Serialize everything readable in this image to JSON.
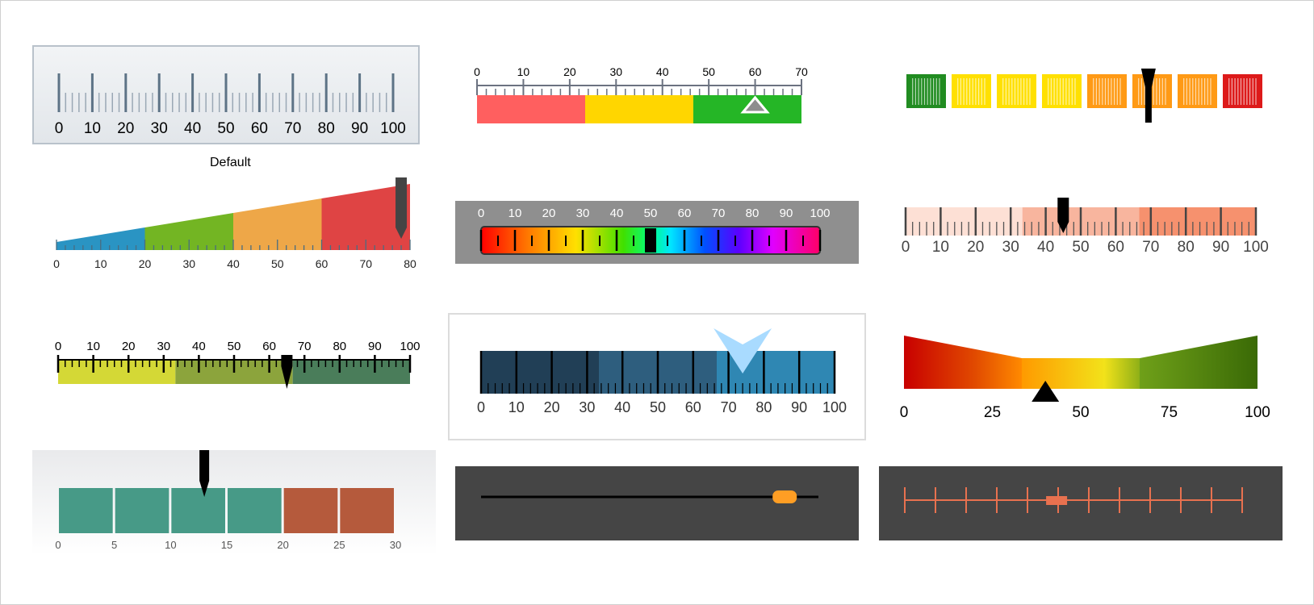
{
  "gauges": {
    "g1": {
      "caption": "Default",
      "labels": [
        "0",
        "10",
        "20",
        "30",
        "40",
        "50",
        "60",
        "70",
        "80",
        "90",
        "100"
      ]
    },
    "g2": {
      "labels": [
        "0",
        "10",
        "20",
        "30",
        "40",
        "50",
        "60",
        "70"
      ],
      "value": 60,
      "colors": [
        "#ff5f5f",
        "#ffd600",
        "#25b626"
      ]
    },
    "g3": {
      "value": 68,
      "colors": [
        "#218c21",
        "#ffe001",
        "#ffe001",
        "#ffe001",
        "#ff9a15",
        "#ff9a15",
        "#ff9a15",
        "#dd1a1a"
      ]
    },
    "g4": {
      "labels": [
        "0",
        "10",
        "20",
        "30",
        "40",
        "50",
        "60",
        "70",
        "80"
      ],
      "value": 78,
      "colors": [
        "#2a94c3",
        "#73b523",
        "#eea748",
        "#df4444"
      ]
    },
    "g5": {
      "labels": [
        "0",
        "10",
        "20",
        "30",
        "40",
        "50",
        "60",
        "70",
        "80",
        "90",
        "100"
      ]
    },
    "g6": {
      "labels": [
        "0",
        "10",
        "20",
        "30",
        "40",
        "50",
        "60",
        "70",
        "80",
        "90",
        "100"
      ],
      "value": 45,
      "colors": [
        "#fde0d5",
        "#f8b59e",
        "#f6916e"
      ]
    },
    "g7": {
      "labels": [
        "0",
        "10",
        "20",
        "30",
        "40",
        "50",
        "60",
        "70",
        "80",
        "90",
        "100"
      ],
      "value": 65,
      "colors": [
        "#d4d836",
        "#8ca43c",
        "#4a7d5a"
      ]
    },
    "g8": {
      "labels": [
        "0",
        "10",
        "20",
        "30",
        "40",
        "50",
        "60",
        "70",
        "80",
        "90",
        "100"
      ],
      "value": 74,
      "colors": [
        "#213f56",
        "#2e5e7e",
        "#2f87b3"
      ]
    },
    "g9": {
      "labels": [
        "0",
        "25",
        "50",
        "75",
        "100"
      ],
      "value": 40
    },
    "g10": {
      "labels": [
        "0",
        "5",
        "10",
        "15",
        "20",
        "25",
        "30"
      ],
      "value": 13,
      "colors": [
        "#479a87",
        "#b55a3c"
      ]
    },
    "g11": {
      "value": 90
    },
    "g12": {
      "value": 45
    }
  }
}
